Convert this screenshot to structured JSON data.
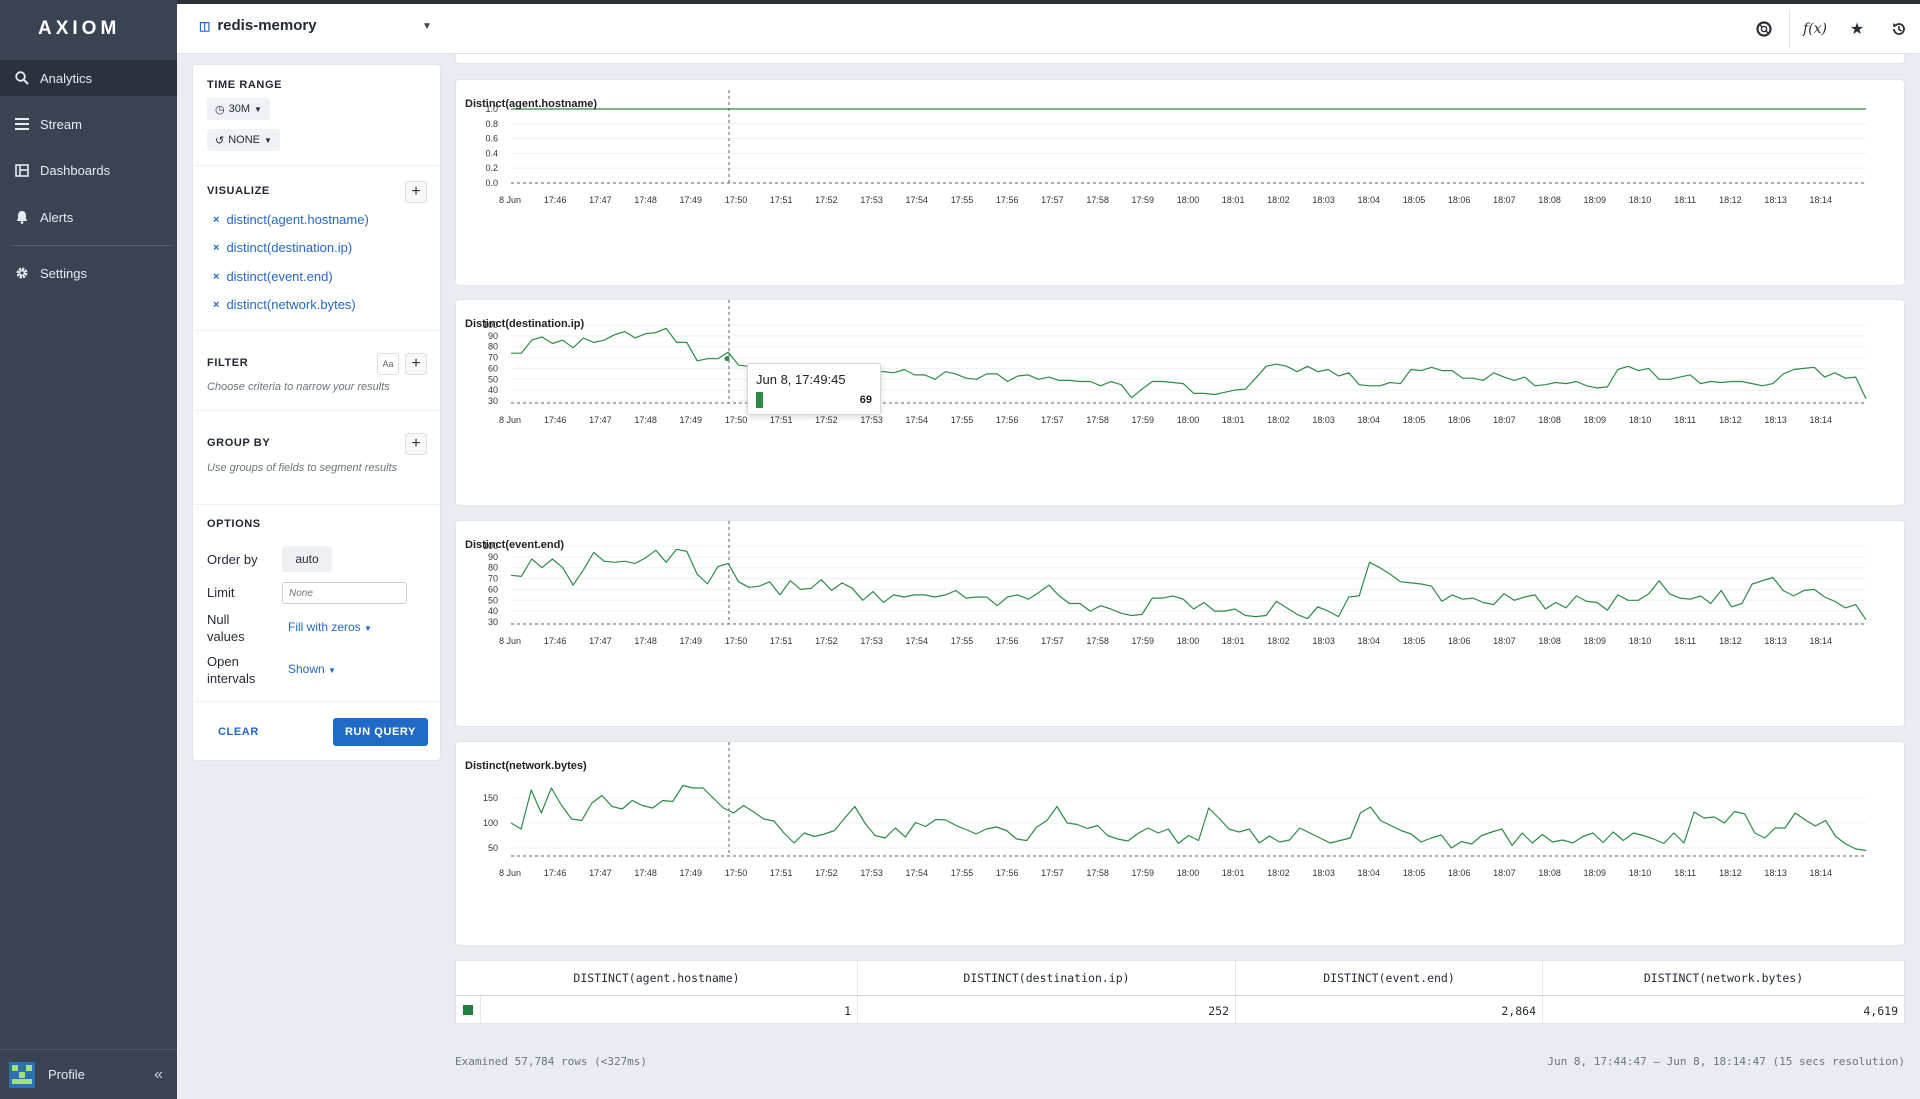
{
  "app": {
    "brand": "AXIOM"
  },
  "sidebar": {
    "items": [
      {
        "label": "Analytics",
        "icon": "search-icon"
      },
      {
        "label": "Stream",
        "icon": "list-icon"
      },
      {
        "label": "Dashboards",
        "icon": "dashboard-icon"
      },
      {
        "label": "Alerts",
        "icon": "bell-icon"
      },
      {
        "label": "Settings",
        "icon": "gear-icon"
      }
    ],
    "profile_label": "Profile"
  },
  "header": {
    "dataset": "redis-memory"
  },
  "query": {
    "time_range_title": "TIME RANGE",
    "time_range_value": "30M",
    "compare_value": "NONE",
    "visualize_title": "VISUALIZE",
    "visualize_items": [
      "distinct(agent.hostname)",
      "distinct(destination.ip)",
      "distinct(event.end)",
      "distinct(network.bytes)"
    ],
    "filter_title": "FILTER",
    "filter_aa": "Aa",
    "filter_hint": "Choose criteria to narrow your results",
    "groupby_title": "GROUP BY",
    "groupby_hint": "Use groups of fields to segment results",
    "options_title": "OPTIONS",
    "order_by_label": "Order by",
    "order_by_value": "auto",
    "limit_label": "Limit",
    "limit_placeholder": "None",
    "null_values_label_1": "Null",
    "null_values_label_2": "values",
    "null_values_value": "Fill with zeros",
    "open_intervals_label_1": "Open",
    "open_intervals_label_2": "intervals",
    "open_intervals_value": "Shown",
    "clear_label": "CLEAR",
    "run_label": "RUN QUERY"
  },
  "chart_data": [
    {
      "type": "line",
      "title": "Distinct(agent.hostname)",
      "x_ticks": [
        "8 Jun",
        "17:46",
        "17:47",
        "17:48",
        "17:49",
        "17:50",
        "17:51",
        "17:52",
        "17:53",
        "17:54",
        "17:55",
        "17:56",
        "17:57",
        "17:58",
        "17:59",
        "18:00",
        "18:01",
        "18:02",
        "18:03",
        "18:04",
        "18:05",
        "18:06",
        "18:07",
        "18:08",
        "18:09",
        "18:10",
        "18:11",
        "18:12",
        "18:13",
        "18:14"
      ],
      "y_ticks": [
        "1.0",
        "0.8",
        "0.6",
        "0.4",
        "0.2",
        "0.0"
      ],
      "ylim": [
        0,
        1.0
      ],
      "series": [
        {
          "values": [
            1,
            1
          ]
        }
      ]
    },
    {
      "type": "line",
      "title": "Distinct(destination.ip)",
      "x_ticks": [
        "8 Jun",
        "17:46",
        "17:47",
        "17:48",
        "17:49",
        "17:50",
        "17:51",
        "17:52",
        "17:53",
        "17:54",
        "17:55",
        "17:56",
        "17:57",
        "17:58",
        "17:59",
        "18:00",
        "18:01",
        "18:02",
        "18:03",
        "18:04",
        "18:05",
        "18:06",
        "18:07",
        "18:08",
        "18:09",
        "18:10",
        "18:11",
        "18:12",
        "18:13",
        "18:14"
      ],
      "y_ticks": [
        "100",
        "90",
        "80",
        "70",
        "60",
        "50",
        "40",
        "30"
      ],
      "ylim": [
        26,
        100
      ],
      "series": [
        {
          "values": [
            74,
            74,
            86,
            89,
            83,
            86,
            79,
            88,
            84,
            86,
            91,
            94,
            88,
            92,
            93,
            97,
            84,
            84,
            67,
            69,
            69,
            75,
            63,
            62,
            60,
            62,
            63,
            59,
            57,
            59,
            60,
            58,
            57,
            58,
            61,
            57,
            57,
            56,
            59,
            54,
            54,
            50,
            57,
            55,
            51,
            50,
            55,
            55,
            48,
            53,
            54,
            50,
            52,
            49,
            49,
            48,
            48,
            44,
            48,
            45,
            33,
            41,
            48,
            48,
            47,
            46,
            37,
            37,
            36,
            38,
            40,
            41,
            51,
            62,
            64,
            62,
            57,
            62,
            57,
            59,
            53,
            56,
            45,
            44,
            44,
            47,
            46,
            59,
            58,
            61,
            58,
            58,
            51,
            51,
            49,
            56,
            52,
            49,
            52,
            44,
            45,
            47,
            46,
            48,
            44,
            42,
            43,
            59,
            62,
            58,
            60,
            50,
            50,
            52,
            54,
            46,
            48,
            47,
            48,
            48,
            46,
            44,
            46,
            55,
            59,
            60,
            61,
            52,
            56,
            51,
            52,
            32
          ]
        }
      ]
    },
    {
      "type": "line",
      "title": "Distinct(event.end)",
      "x_ticks": [
        "8 Jun",
        "17:46",
        "17:47",
        "17:48",
        "17:49",
        "17:50",
        "17:51",
        "17:52",
        "17:53",
        "17:54",
        "17:55",
        "17:56",
        "17:57",
        "17:58",
        "17:59",
        "18:00",
        "18:01",
        "18:02",
        "18:03",
        "18:04",
        "18:05",
        "18:06",
        "18:07",
        "18:08",
        "18:09",
        "18:10",
        "18:11",
        "18:12",
        "18:13",
        "18:14"
      ],
      "y_ticks": [
        "100",
        "90",
        "80",
        "70",
        "60",
        "50",
        "40",
        "30"
      ],
      "ylim": [
        26,
        100
      ],
      "series": [
        {
          "values": [
            73,
            72,
            88,
            80,
            88,
            80,
            64,
            78,
            94,
            86,
            85,
            86,
            84,
            89,
            96,
            85,
            97,
            95,
            74,
            65,
            81,
            84,
            67,
            62,
            63,
            67,
            55,
            68,
            60,
            61,
            69,
            59,
            66,
            61,
            50,
            58,
            48,
            55,
            53,
            55,
            55,
            53,
            55,
            59,
            52,
            53,
            53,
            45,
            53,
            55,
            51,
            57,
            64,
            54,
            47,
            47,
            40,
            45,
            42,
            38,
            36,
            37,
            52,
            52,
            54,
            51,
            42,
            48,
            40,
            40,
            42,
            36,
            35,
            36,
            49,
            43,
            37,
            33,
            44,
            40,
            35,
            53,
            54,
            85,
            80,
            74,
            67,
            66,
            65,
            63,
            49,
            55,
            51,
            52,
            48,
            46,
            56,
            50,
            53,
            55,
            42,
            48,
            43,
            54,
            49,
            48,
            41,
            55,
            50,
            50,
            56,
            68,
            56,
            52,
            51,
            54,
            47,
            59,
            44,
            47,
            65,
            68,
            71,
            59,
            54,
            59,
            60,
            53,
            49,
            43,
            46,
            32
          ]
        }
      ]
    },
    {
      "type": "line",
      "title": "Distinct(network.bytes)",
      "x_ticks": [
        "8 Jun",
        "17:46",
        "17:47",
        "17:48",
        "17:49",
        "17:50",
        "17:51",
        "17:52",
        "17:53",
        "17:54",
        "17:55",
        "17:56",
        "17:57",
        "17:58",
        "17:59",
        "18:00",
        "18:01",
        "18:02",
        "18:03",
        "18:04",
        "18:05",
        "18:06",
        "18:07",
        "18:08",
        "18:09",
        "18:10",
        "18:11",
        "18:12",
        "18:13",
        "18:14"
      ],
      "y_ticks": [
        "150",
        "100",
        "50"
      ],
      "ylim": [
        30,
        180
      ],
      "series": [
        {
          "values": [
            100,
            88,
            166,
            120,
            170,
            135,
            108,
            105,
            140,
            155,
            133,
            128,
            145,
            135,
            130,
            145,
            143,
            175,
            170,
            170,
            150,
            130,
            120,
            135,
            122,
            108,
            104,
            80,
            60,
            80,
            73,
            78,
            85,
            110,
            133,
            100,
            75,
            70,
            90,
            72,
            101,
            93,
            107,
            106,
            95,
            87,
            78,
            88,
            92,
            85,
            68,
            65,
            92,
            105,
            133,
            100,
            97,
            89,
            95,
            75,
            68,
            64,
            79,
            90,
            80,
            88,
            59,
            75,
            65,
            130,
            110,
            88,
            82,
            88,
            60,
            74,
            62,
            66,
            90,
            80,
            70,
            60,
            65,
            70,
            120,
            132,
            105,
            95,
            85,
            78,
            62,
            70,
            76,
            50,
            63,
            58,
            75,
            82,
            88,
            55,
            80,
            60,
            77,
            62,
            66,
            60,
            73,
            80,
            61,
            82,
            65,
            80,
            75,
            68,
            59,
            80,
            60,
            122,
            110,
            112,
            100,
            123,
            118,
            80,
            70,
            90,
            90,
            120,
            106,
            94,
            105,
            73,
            58,
            48,
            45
          ]
        }
      ]
    }
  ],
  "tooltip": {
    "title": "Jun 8, 17:49:45",
    "value": "69"
  },
  "table": {
    "headers": [
      "DISTINCT(agent.hostname)",
      "DISTINCT(destination.ip)",
      "DISTINCT(event.end)",
      "DISTINCT(network.bytes)"
    ],
    "values": [
      "1",
      "252",
      "2,864",
      "4,619"
    ]
  },
  "footer": {
    "examined": "Examined 57,784 rows (<327ms)",
    "range": "Jun 8, 17:44:47 — Jun 8, 18:14:47 (15 secs resolution)"
  },
  "colors": {
    "line": "#2e8b47",
    "accent": "#1f6ac7"
  }
}
